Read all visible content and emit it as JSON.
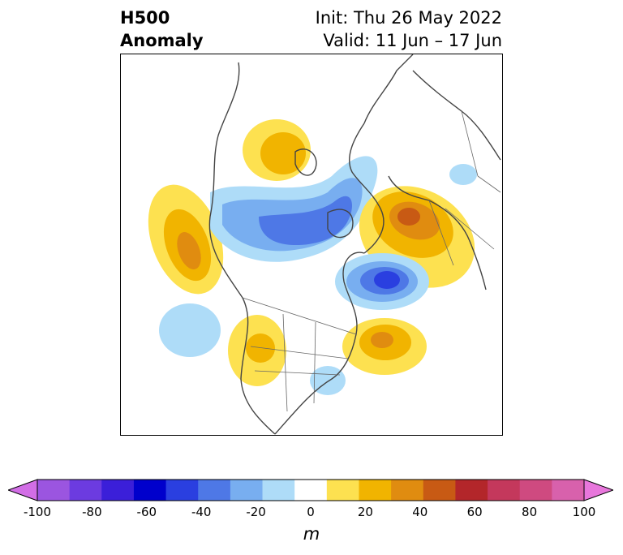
{
  "title": {
    "left_line1": "H500",
    "left_line2": "Anomaly",
    "right_line1": "Init: Thu 26 May 2022",
    "right_line2": "Valid: 11 Jun – 17 Jun"
  },
  "colorbar": {
    "units": "m",
    "ticks": [
      "-100",
      "-80",
      "-60",
      "-40",
      "-20",
      "0",
      "20",
      "40",
      "60",
      "80",
      "100"
    ],
    "colors": [
      "#d26ee6",
      "#9b55e0",
      "#6c3be0",
      "#3b1fd9",
      "#0000cc",
      "#2a3fe0",
      "#4e78e6",
      "#78aef0",
      "#aedcf8",
      "#ffffff",
      "#fde150",
      "#f1b400",
      "#e08c10",
      "#c85a14",
      "#b3262a",
      "#c4385c",
      "#cf4a80",
      "#d861ac",
      "#e877dc"
    ],
    "min": -100,
    "max": 100,
    "step": 10
  }
}
